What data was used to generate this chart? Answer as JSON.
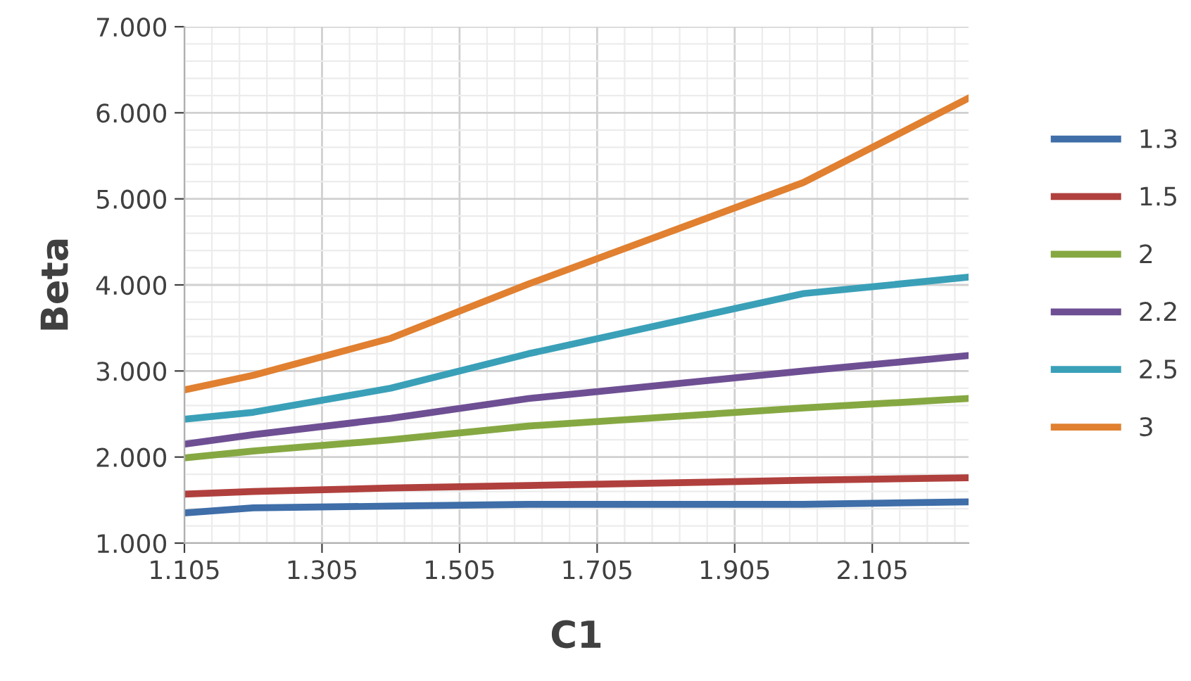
{
  "chart_data": {
    "type": "line",
    "xlabel": "C1",
    "ylabel": "Beta",
    "x": [
      1.105,
      1.205,
      1.405,
      1.605,
      2.005,
      2.245
    ],
    "series": [
      {
        "name": "1.3",
        "color": "#3f6ea8",
        "values": [
          1.35,
          1.41,
          1.43,
          1.45,
          1.45,
          1.48
        ]
      },
      {
        "name": "1.5",
        "color": "#b0403d",
        "values": [
          1.57,
          1.6,
          1.64,
          1.67,
          1.73,
          1.76
        ]
      },
      {
        "name": "2",
        "color": "#86a842",
        "values": [
          1.99,
          2.07,
          2.2,
          2.36,
          2.57,
          2.68
        ]
      },
      {
        "name": "2.2",
        "color": "#6e4f93",
        "values": [
          2.15,
          2.26,
          2.45,
          2.68,
          3.0,
          3.18
        ]
      },
      {
        "name": "2.5",
        "color": "#3aa0b8",
        "values": [
          2.44,
          2.52,
          2.8,
          3.2,
          3.9,
          4.09
        ]
      },
      {
        "name": "3",
        "color": "#e08030",
        "values": [
          2.78,
          2.95,
          3.38,
          4.01,
          5.19,
          6.17
        ]
      }
    ],
    "xlim": [
      1.105,
      2.245
    ],
    "xticks": [
      1.105,
      1.305,
      1.505,
      1.705,
      1.905,
      2.105
    ],
    "ylim": [
      1,
      7
    ],
    "yticks": [
      {
        "value": 1,
        "label": "1.000"
      },
      {
        "value": 2,
        "label": "2.000"
      },
      {
        "value": 3,
        "label": "3.000"
      },
      {
        "value": 4,
        "label": "4.000"
      },
      {
        "value": 5,
        "label": "5.000"
      },
      {
        "value": 6,
        "label": "6.000"
      },
      {
        "value": 7,
        "label": "7.000"
      }
    ],
    "grid": true,
    "legend": "right",
    "marker": "none",
    "line_style": "solid"
  }
}
